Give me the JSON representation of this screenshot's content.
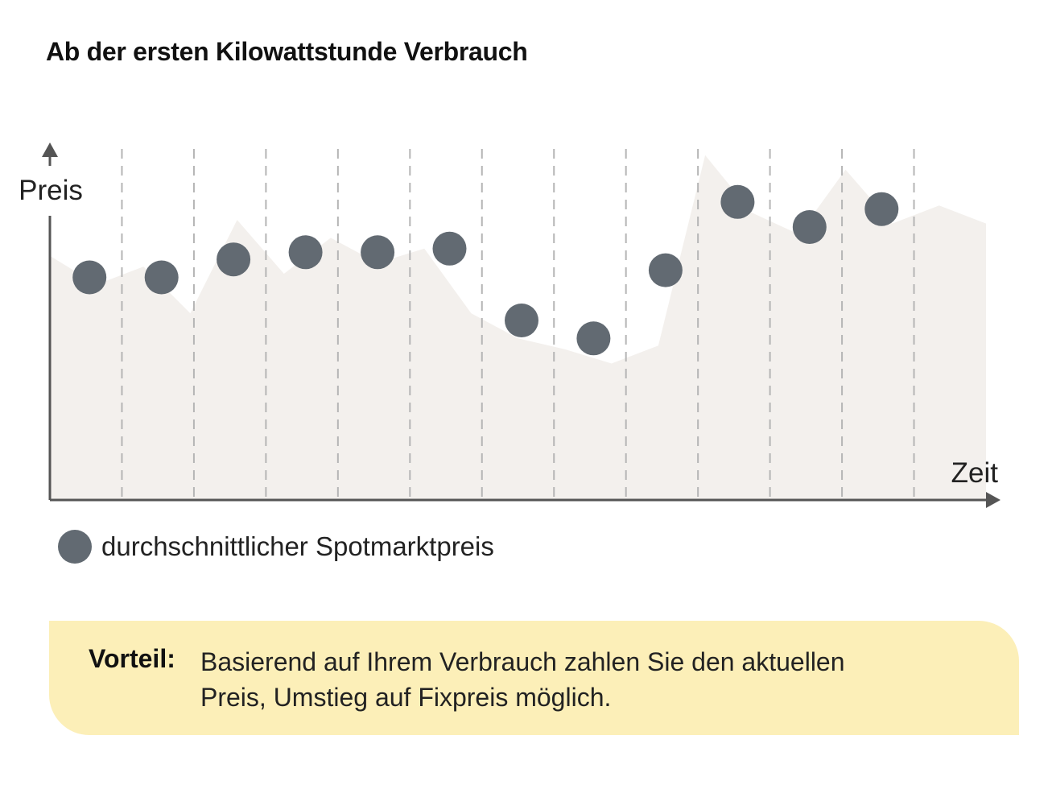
{
  "title": "Ab der ersten Kilowattstunde Verbrauch",
  "chart_data": {
    "type": "scatter",
    "xlabel": "Zeit",
    "ylabel": "Preis",
    "x_ticks_labeled": false,
    "y_ticks_labeled": false,
    "grid": "vertical dashed",
    "colors": {
      "point": "#626a72",
      "area": "#f3f0ed",
      "axis": "#555555",
      "grid": "#b5b5b5"
    },
    "background_area": {
      "name": "",
      "values": [
        0.68,
        0.6,
        0.65,
        0.52,
        0.78,
        0.63,
        0.73,
        0.66,
        0.7,
        0.52,
        0.45,
        0.42,
        0.38,
        0.43,
        0.96,
        0.8,
        0.74,
        0.92,
        0.77,
        0.82,
        0.77
      ]
    },
    "series": [
      {
        "name": "durchschnittlicher Spotmarktpreis",
        "values": [
          0.62,
          0.62,
          0.67,
          0.69,
          0.69,
          0.7,
          0.5,
          0.45,
          0.64,
          0.83,
          0.76,
          0.81
        ]
      }
    ]
  },
  "legend": {
    "label": "durchschnittlicher Spotmarktpreis"
  },
  "note": {
    "label": "Vorteil:",
    "text_line1": "Basierend auf Ihrem Verbrauch zahlen Sie den aktuellen",
    "text_line2": "Preis, Umstieg auf Fixpreis möglich."
  }
}
